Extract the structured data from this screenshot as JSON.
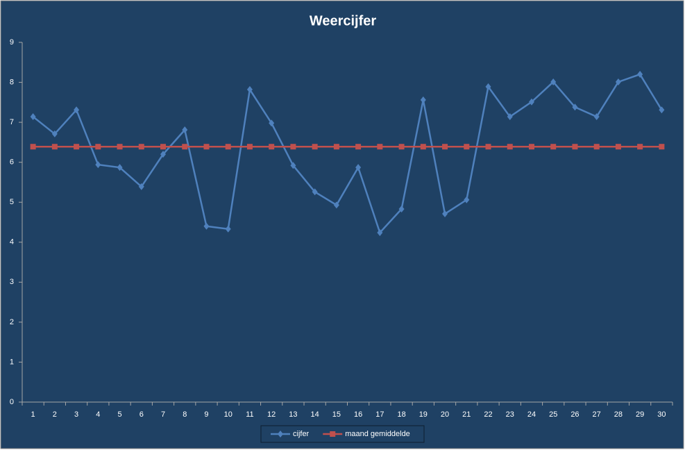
{
  "chart_data": {
    "type": "line",
    "title": "Weercijfer",
    "categories": [
      "1",
      "2",
      "3",
      "4",
      "5",
      "6",
      "7",
      "8",
      "9",
      "10",
      "11",
      "12",
      "13",
      "14",
      "15",
      "16",
      "17",
      "18",
      "19",
      "20",
      "21",
      "22",
      "23",
      "24",
      "25",
      "26",
      "27",
      "28",
      "29",
      "30"
    ],
    "series": [
      {
        "name": "cijfer",
        "color": "#4f81bd",
        "marker": "diamond",
        "values": [
          7.14,
          6.71,
          7.31,
          5.94,
          5.87,
          5.39,
          6.2,
          6.81,
          4.4,
          4.33,
          7.82,
          6.98,
          5.92,
          5.26,
          4.93,
          5.87,
          4.24,
          4.83,
          7.56,
          4.71,
          5.06,
          7.89,
          7.14,
          7.51,
          8.01,
          7.38,
          7.14,
          8.01,
          8.2,
          7.31
        ]
      },
      {
        "name": "maand gemiddelde",
        "color": "#c0504d",
        "marker": "square",
        "values": [
          6.39,
          6.39,
          6.39,
          6.39,
          6.39,
          6.39,
          6.39,
          6.39,
          6.39,
          6.39,
          6.39,
          6.39,
          6.39,
          6.39,
          6.39,
          6.39,
          6.39,
          6.39,
          6.39,
          6.39,
          6.39,
          6.39,
          6.39,
          6.39,
          6.39,
          6.39,
          6.39,
          6.39,
          6.39,
          6.39
        ]
      }
    ],
    "ylim": [
      0,
      9
    ],
    "yticks": [
      0,
      1,
      2,
      3,
      4,
      5,
      6,
      7,
      8,
      9
    ],
    "grid": false,
    "legend": "bottom"
  }
}
